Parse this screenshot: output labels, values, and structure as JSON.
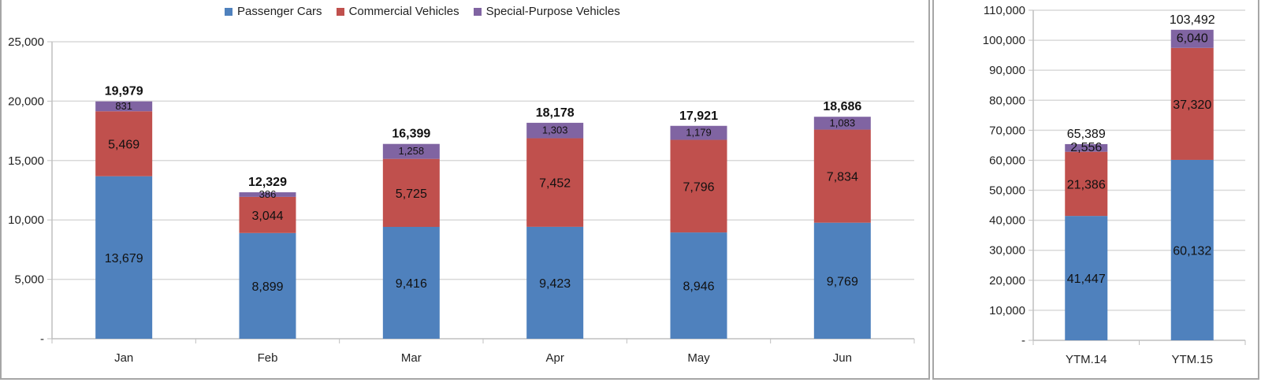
{
  "chart_data": [
    {
      "type": "bar",
      "stacked": true,
      "categories": [
        "Jan",
        "Feb",
        "Mar",
        "Apr",
        "May",
        "Jun"
      ],
      "series": [
        {
          "name": "Passenger Cars",
          "color": "#4f81bd",
          "values": [
            13679,
            8899,
            9416,
            9423,
            8946,
            9769
          ],
          "labels": [
            "13,679",
            "8,899",
            "9,416",
            "9,423",
            "8,946",
            "9,769"
          ]
        },
        {
          "name": "Commercial Vehicles",
          "color": "#c0504d",
          "values": [
            5469,
            3044,
            5725,
            7452,
            7796,
            7834
          ],
          "labels": [
            "5,469",
            "3,044",
            "5,725",
            "7,452",
            "7,796",
            "7,834"
          ]
        },
        {
          "name": "Special-Purpose Vehicles",
          "color": "#8064a2",
          "values": [
            831,
            386,
            1258,
            1303,
            1179,
            1083
          ],
          "labels": [
            "831",
            "386",
            "1,258",
            "1,303",
            "1,179",
            "1,083"
          ]
        }
      ],
      "totals": [
        19979,
        12329,
        16399,
        18178,
        17921,
        18686
      ],
      "total_labels": [
        "19,979",
        "12,329",
        "16,399",
        "18,178",
        "17,921",
        "18,686"
      ],
      "ylim": [
        0,
        25000
      ],
      "yticks": [
        0,
        5000,
        10000,
        15000,
        20000,
        25000
      ],
      "ytick_labels": [
        "-",
        "5,000",
        "10,000",
        "15,000",
        "20,000",
        "25,000"
      ],
      "grid": true,
      "legend": "top"
    },
    {
      "type": "bar",
      "stacked": true,
      "categories": [
        "YTM.14",
        "YTM.15"
      ],
      "series": [
        {
          "name": "Passenger Cars",
          "color": "#4f81bd",
          "values": [
            41447,
            60132
          ],
          "labels": [
            "41,447",
            "60,132"
          ]
        },
        {
          "name": "Commercial Vehicles",
          "color": "#c0504d",
          "values": [
            21386,
            37320
          ],
          "labels": [
            "21,386",
            "37,320"
          ]
        },
        {
          "name": "Special-Purpose Vehicles",
          "color": "#8064a2",
          "values": [
            2556,
            6040
          ],
          "labels": [
            "2,556",
            "6,040"
          ]
        }
      ],
      "totals": [
        65389,
        103492
      ],
      "total_labels": [
        "65,389",
        "103,492"
      ],
      "ylim": [
        0,
        110000
      ],
      "yticks": [
        0,
        10000,
        20000,
        30000,
        40000,
        50000,
        60000,
        70000,
        80000,
        90000,
        100000,
        110000
      ],
      "ytick_labels": [
        "-",
        "10,000",
        "20,000",
        "30,000",
        "40,000",
        "50,000",
        "60,000",
        "70,000",
        "80,000",
        "90,000",
        "100,000",
        "110,000"
      ],
      "grid": true
    }
  ]
}
